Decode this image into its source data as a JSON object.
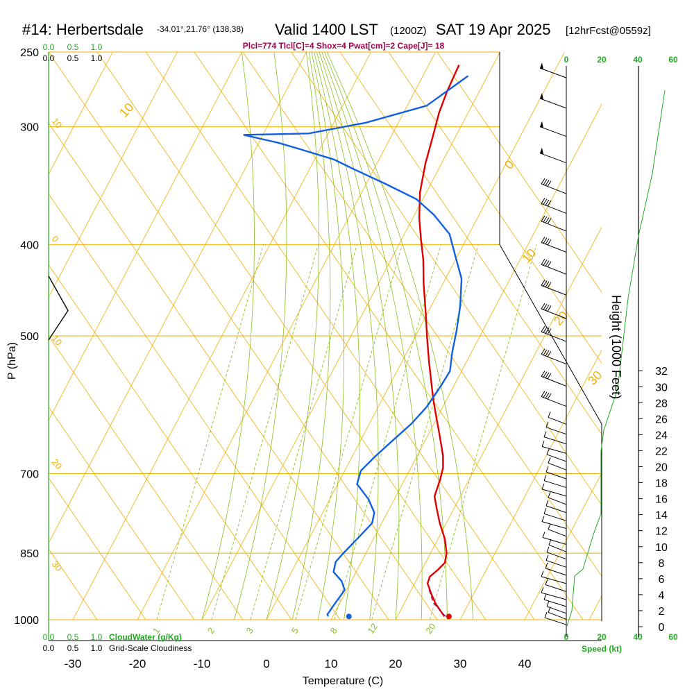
{
  "header": {
    "title": "#14: Herbertsdale",
    "location": "-34.01°,21.76° (138,38)",
    "valid": "Valid 1400 LST",
    "zulu": "(1200Z)",
    "date": "SAT 19 Apr 2025",
    "forecast": "[12hrFcst@0559z]",
    "indices": "Plcl=774 Tlcl[C]=4 Shox=4 Pwat[cm]=2 Cape[J]= 18"
  },
  "colors": {
    "temperature": "#e00000",
    "dewpoint": "#1060e0",
    "isotherm": "#f0b000",
    "dry_adiabat": "#f0b000",
    "moist_adiabat": "#88c020",
    "mixing_ratio": "#88c020",
    "green_text": "#22aa22",
    "indices_text": "#a0004a"
  },
  "chart_data": {
    "type": "line",
    "title": "#14: Herbertsdale",
    "xlabel": "Temperature (C)",
    "ylabel": "P (hPa)",
    "xlim": [
      -35,
      45
    ],
    "ylim": [
      1000,
      250
    ],
    "y_scale": "log",
    "grid": true,
    "pressure_ticks": [
      {
        "value": 250,
        "label": "250"
      },
      {
        "value": 300,
        "label": "300"
      },
      {
        "value": 400,
        "label": "400"
      },
      {
        "value": 500,
        "label": "500"
      },
      {
        "value": 700,
        "label": "700"
      },
      {
        "value": 850,
        "label": "850"
      },
      {
        "value": 1000,
        "label": "1000"
      }
    ],
    "temperature_ticks": [
      {
        "value": -30,
        "label": "-30"
      },
      {
        "value": -20,
        "label": "-20"
      },
      {
        "value": -10,
        "label": "-10"
      },
      {
        "value": 0,
        "label": "0"
      },
      {
        "value": 10,
        "label": "10"
      },
      {
        "value": 20,
        "label": "20"
      },
      {
        "value": 30,
        "label": "30"
      },
      {
        "value": 40,
        "label": "40"
      }
    ],
    "series": [
      {
        "key": "temperature",
        "points": [
          [
            27.3,
            992
          ],
          [
            25,
            963
          ],
          [
            23.5,
            940
          ],
          [
            22,
            915
          ],
          [
            21.8,
            900
          ],
          [
            22.5,
            885
          ],
          [
            23,
            870
          ],
          [
            22.5,
            850
          ],
          [
            21,
            820
          ],
          [
            19,
            790
          ],
          [
            17.5,
            765
          ],
          [
            16,
            740
          ],
          [
            15.5,
            710
          ],
          [
            15,
            690
          ],
          [
            14,
            670
          ],
          [
            12,
            640
          ],
          [
            10,
            612
          ],
          [
            8,
            585
          ],
          [
            6,
            557
          ],
          [
            4,
            530
          ],
          [
            2,
            503
          ],
          [
            -0.5,
            470
          ],
          [
            -3,
            440
          ],
          [
            -5,
            415
          ],
          [
            -7,
            395
          ],
          [
            -9,
            375
          ],
          [
            -11,
            352
          ],
          [
            -12.5,
            328
          ],
          [
            -13.5,
            308
          ],
          [
            -14.5,
            290
          ],
          [
            -15,
            275
          ],
          [
            -15.3,
            258
          ]
        ]
      },
      {
        "key": "dewpoint",
        "points": [
          [
            9.3,
            992
          ],
          [
            9,
            987
          ],
          [
            9.3,
            960
          ],
          [
            9.7,
            930
          ],
          [
            8.5,
            910
          ],
          [
            6.5,
            890
          ],
          [
            6,
            868
          ],
          [
            6.5,
            850
          ],
          [
            7.5,
            820
          ],
          [
            8.5,
            790
          ],
          [
            8,
            770
          ],
          [
            6,
            745
          ],
          [
            3,
            718
          ],
          [
            2.5,
            695
          ],
          [
            3.5,
            672
          ],
          [
            5,
            645
          ],
          [
            6.5,
            620
          ],
          [
            7.5,
            595
          ],
          [
            8,
            565
          ],
          [
            8.2,
            545
          ],
          [
            7,
            520
          ],
          [
            6,
            495
          ],
          [
            4.5,
            465
          ],
          [
            2.5,
            435
          ],
          [
            -0.5,
            410
          ],
          [
            -3,
            390
          ],
          [
            -7,
            372
          ],
          [
            -11,
            358
          ],
          [
            -17,
            345
          ],
          [
            -23,
            333
          ],
          [
            -27,
            325
          ],
          [
            -33,
            317
          ],
          [
            -37,
            312
          ],
          [
            -43,
            306
          ],
          [
            -33,
            305
          ],
          [
            -25,
            297
          ],
          [
            -17,
            285
          ],
          [
            -13,
            265
          ]
        ]
      },
      {
        "key": "parcel",
        "points": [
          [
            27.5,
            992
          ],
          [
            24.5,
            960
          ],
          [
            22.5,
            925
          ]
        ]
      }
    ],
    "surface_points": [
      {
        "key": "temperature",
        "value": 28.0,
        "p": 992
      },
      {
        "key": "dewpoint",
        "value": 12.5,
        "p": 992
      }
    ],
    "isotherm_labels": [
      {
        "value": -10,
        "label": "10"
      },
      {
        "value": 0,
        "label": "0"
      },
      {
        "value": 10,
        "label": "10"
      },
      {
        "value": 20,
        "label": "20"
      },
      {
        "value": 30,
        "label": "30"
      }
    ],
    "left_adiabat_labels": [
      {
        "label": "10",
        "p": 300
      },
      {
        "label": "0",
        "p": 400
      },
      {
        "label": "10",
        "p": 510
      },
      {
        "label": "20",
        "p": 690
      },
      {
        "label": "30",
        "p": 885
      }
    ],
    "mixing_ratio_labels": [
      {
        "value": 1,
        "label": "1"
      },
      {
        "value": 2,
        "label": "2"
      },
      {
        "value": 3,
        "label": "3"
      },
      {
        "value": 5,
        "label": "5"
      },
      {
        "value": 8,
        "label": "8"
      },
      {
        "value": 12,
        "label": "12"
      },
      {
        "value": 20,
        "label": "20"
      }
    ],
    "height_axis": {
      "label": "Height (1000 Feet)",
      "ticks": [
        "0",
        "2",
        "4",
        "6",
        "8",
        "10",
        "12",
        "14",
        "16",
        "18",
        "20",
        "22",
        "24",
        "26",
        "28",
        "30",
        "32"
      ]
    },
    "speed_axis": {
      "label": "Speed (kt)",
      "ticks": [
        "0",
        "20",
        "40",
        "60"
      ]
    },
    "cloud_scale": {
      "cloudwater_label": "CloudWater (g/Kg)",
      "cloudiness_label": "Grid-Scale Cloudiness",
      "ticks": [
        "0.0",
        "0.5",
        "1.0"
      ]
    },
    "wind_barbs": {
      "upper_pressures": [
        260,
        280,
        300,
        320
      ],
      "mid_pressures": [
        345,
        362,
        378,
        398,
        420,
        442,
        468,
        495,
        523,
        552,
        580
      ],
      "low_pressures": [
        610,
        625,
        640,
        655,
        668,
        682,
        697,
        712,
        727,
        742,
        757,
        772,
        787,
        802,
        818,
        833,
        848,
        865,
        882,
        900,
        918,
        936,
        952,
        968,
        982,
        995
      ]
    }
  }
}
